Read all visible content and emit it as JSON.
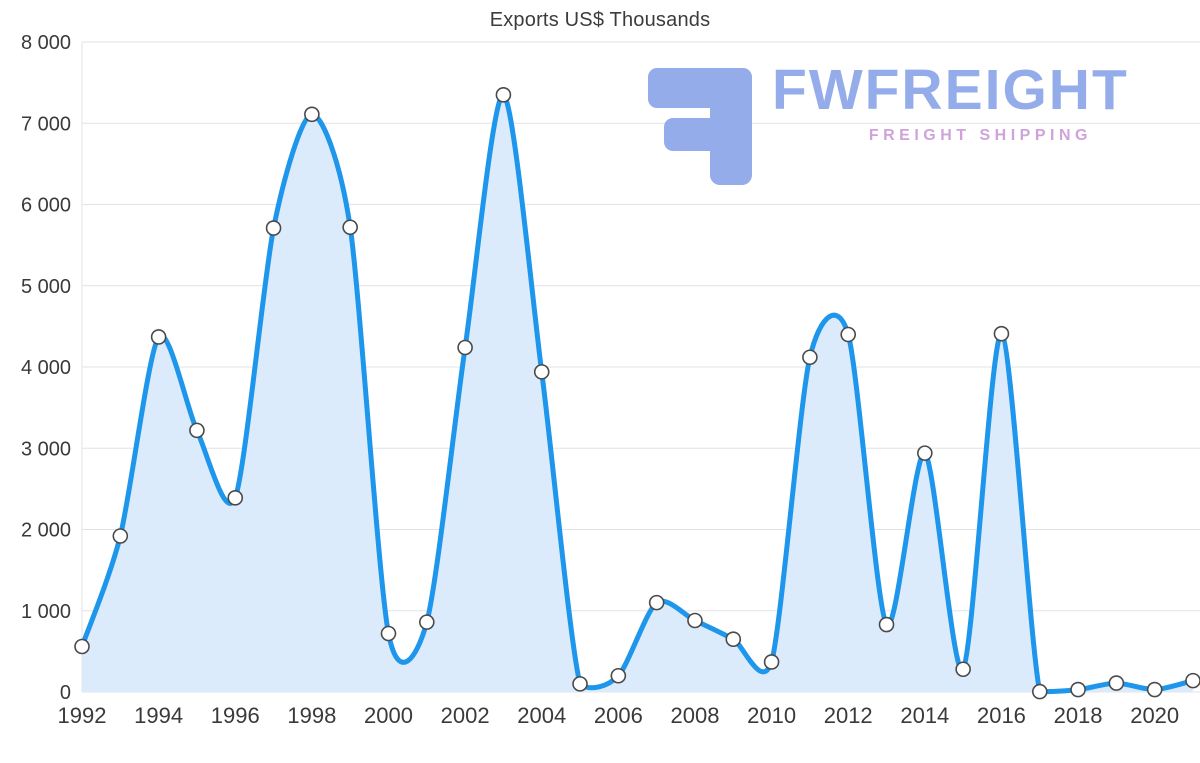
{
  "chart_data": {
    "type": "area",
    "title": "Exports US$ Thousands",
    "xlabel": "",
    "ylabel": "",
    "x": [
      1992,
      1993,
      1994,
      1995,
      1996,
      1997,
      1998,
      1999,
      2000,
      2001,
      2002,
      2003,
      2004,
      2005,
      2006,
      2007,
      2008,
      2009,
      2010,
      2011,
      2012,
      2013,
      2014,
      2015,
      2016,
      2017,
      2018,
      2019,
      2020,
      2021
    ],
    "values": [
      560,
      1920,
      4370,
      3220,
      2390,
      5710,
      7110,
      5720,
      720,
      860,
      4240,
      7350,
      3940,
      100,
      200,
      1100,
      880,
      650,
      370,
      4120,
      4400,
      830,
      2940,
      280,
      4410,
      5,
      30,
      110,
      30,
      140
    ],
    "x_ticks": [
      1992,
      1994,
      1996,
      1998,
      2000,
      2002,
      2004,
      2006,
      2008,
      2010,
      2012,
      2014,
      2016,
      2018,
      2020
    ],
    "y_ticks": [
      {
        "value": 0,
        "label": "0"
      },
      {
        "value": 1000,
        "label": "1 000"
      },
      {
        "value": 2000,
        "label": "2 000"
      },
      {
        "value": 3000,
        "label": "3 000"
      },
      {
        "value": 4000,
        "label": "4 000"
      },
      {
        "value": 5000,
        "label": "5 000"
      },
      {
        "value": 6000,
        "label": "6 000"
      },
      {
        "value": 7000,
        "label": "7 000"
      },
      {
        "value": 8000,
        "label": "8 000"
      }
    ],
    "xlim": [
      1992,
      2021
    ],
    "ylim": [
      0,
      8000
    ],
    "grid": true,
    "legend_position": "none",
    "line_color": "#1E96EB",
    "fill_color": "#DBEBFB",
    "marker_fill": "#FFFFFF",
    "marker_stroke": "#4A4A4A",
    "grid_color": "#E3E3E3",
    "axis_text_color": "#3A3A3A"
  },
  "watermark": {
    "brand": "FWFREIGHT",
    "tagline": "FREIGHT SHIPPING",
    "brand_color": "#8CA6E9",
    "tagline_color": "#CD9BD8",
    "icon": "stylized-f-freight-logo-icon"
  }
}
